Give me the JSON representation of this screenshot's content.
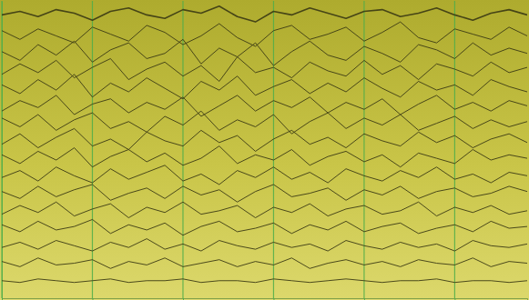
{
  "chart_data": {
    "type": "line",
    "color": "#3b3a14",
    "grid": true,
    "tick_labels": false,
    "x": [
      0,
      1,
      2,
      3,
      4,
      5,
      6,
      7,
      8,
      9,
      10,
      11,
      12,
      13,
      14,
      15,
      16,
      17,
      18,
      19,
      20,
      21,
      22,
      23,
      24,
      25,
      26,
      27,
      28,
      29
    ],
    "xlim": [
      0,
      29
    ],
    "xticks": [
      0,
      5,
      10,
      15,
      20,
      25
    ],
    "ylim": [
      0,
      17
    ],
    "series": [
      {
        "values": [
          16.2,
          16.4,
          16.1,
          16.5,
          16.3,
          15.9,
          16.4,
          16.6,
          16.2,
          16.0,
          16.5,
          16.3,
          16.7,
          16.1,
          15.8,
          16.4,
          16.2,
          16.6,
          16.3,
          16.0,
          16.4,
          16.5,
          16.1,
          16.3,
          16.6,
          16.2,
          15.9,
          16.3,
          16.5,
          16.2
        ]
      },
      {
        "values": [
          15.3,
          14.8,
          15.4,
          15.0,
          14.6,
          15.5,
          15.1,
          14.7,
          15.6,
          15.2,
          14.5,
          15.0,
          15.7,
          14.9,
          14.4,
          15.3,
          15.6,
          14.8,
          15.1,
          15.5,
          14.7,
          15.2,
          15.8,
          14.9,
          14.6,
          15.4,
          15.1,
          14.8,
          15.5,
          15.0
        ]
      },
      {
        "values": [
          14.1,
          13.6,
          14.5,
          13.9,
          14.7,
          13.5,
          14.2,
          14.6,
          13.7,
          14.0,
          14.8,
          13.4,
          14.3,
          13.8,
          14.6,
          13.3,
          14.1,
          14.7,
          13.9,
          13.6,
          14.4,
          14.0,
          13.5,
          14.5,
          14.2,
          13.7,
          14.6,
          13.9,
          14.3,
          14.0
        ]
      },
      {
        "values": [
          12.8,
          13.4,
          12.9,
          13.6,
          12.6,
          13.2,
          13.7,
          12.5,
          13.1,
          13.5,
          12.7,
          13.3,
          12.4,
          13.8,
          12.9,
          13.2,
          12.6,
          13.5,
          13.0,
          12.7,
          13.6,
          12.8,
          13.3,
          12.5,
          13.4,
          13.1,
          12.7,
          13.5,
          12.9,
          13.2
        ]
      },
      {
        "values": [
          12.2,
          11.7,
          12.5,
          11.9,
          12.8,
          11.5,
          12.3,
          11.8,
          12.6,
          12.0,
          11.4,
          12.4,
          11.9,
          12.7,
          11.6,
          12.1,
          12.5,
          11.7,
          12.3,
          11.8,
          12.6,
          12.0,
          11.5,
          12.4,
          11.9,
          12.2,
          11.6,
          12.5,
          12.1,
          11.8
        ]
      },
      {
        "values": [
          10.7,
          11.3,
          10.9,
          11.6,
          10.5,
          11.1,
          11.4,
          10.6,
          11.2,
          10.8,
          11.5,
          10.4,
          11.0,
          11.6,
          10.7,
          11.3,
          10.9,
          11.5,
          10.6,
          11.2,
          10.8,
          11.4,
          10.5,
          11.1,
          11.6,
          10.8,
          11.2,
          10.7,
          11.3,
          11.0
        ]
      },
      {
        "values": [
          10.3,
          9.8,
          10.5,
          9.6,
          10.2,
          10.6,
          9.7,
          10.1,
          9.5,
          10.4,
          9.9,
          10.7,
          9.6,
          10.2,
          9.8,
          10.5,
          9.4,
          10.1,
          10.6,
          9.7,
          10.3,
          9.9,
          10.5,
          9.6,
          10.0,
          10.4,
          9.7,
          10.2,
          9.8,
          10.1
        ]
      },
      {
        "values": [
          8.8,
          9.4,
          8.6,
          9.2,
          9.7,
          8.7,
          9.1,
          8.5,
          9.5,
          9.0,
          8.7,
          9.6,
          8.9,
          9.3,
          8.4,
          9.1,
          9.6,
          8.8,
          9.2,
          8.6,
          9.4,
          9.0,
          8.7,
          9.5,
          8.9,
          9.3,
          8.6,
          9.1,
          9.4,
          8.9
        ]
      },
      {
        "values": [
          8.2,
          7.7,
          8.4,
          7.9,
          8.6,
          7.5,
          8.1,
          8.5,
          7.8,
          8.3,
          7.6,
          8.0,
          8.7,
          7.7,
          8.2,
          7.9,
          8.5,
          7.6,
          8.1,
          8.4,
          7.8,
          8.2,
          7.5,
          8.3,
          8.0,
          7.7,
          8.5,
          7.9,
          8.2,
          8.0
        ]
      },
      {
        "values": [
          6.9,
          7.3,
          6.7,
          7.5,
          7.0,
          6.6,
          7.4,
          6.8,
          7.2,
          7.6,
          6.7,
          7.1,
          6.5,
          7.3,
          6.9,
          7.5,
          6.8,
          7.2,
          6.6,
          7.4,
          7.0,
          6.7,
          7.3,
          6.9,
          7.5,
          6.8,
          7.1,
          6.6,
          7.2,
          7.0
        ]
      },
      {
        "values": [
          6.1,
          5.7,
          6.4,
          5.8,
          6.2,
          6.5,
          5.6,
          6.0,
          6.3,
          5.7,
          6.4,
          5.9,
          6.2,
          5.5,
          6.1,
          6.5,
          5.8,
          6.0,
          6.3,
          5.6,
          6.2,
          5.9,
          6.4,
          5.7,
          6.1,
          6.3,
          5.8,
          6.0,
          6.4,
          6.1
        ]
      },
      {
        "values": [
          4.8,
          5.3,
          4.9,
          5.5,
          4.7,
          5.1,
          5.4,
          4.6,
          5.2,
          4.9,
          5.5,
          4.8,
          5.0,
          5.3,
          4.6,
          5.2,
          4.9,
          5.4,
          4.7,
          5.1,
          5.3,
          4.8,
          5.0,
          5.5,
          4.7,
          5.2,
          4.9,
          5.3,
          4.8,
          5.0
        ]
      },
      {
        "values": [
          4.2,
          3.8,
          4.4,
          3.9,
          4.1,
          4.5,
          3.7,
          4.2,
          3.9,
          4.3,
          3.6,
          4.1,
          4.4,
          3.8,
          4.0,
          4.3,
          3.7,
          4.2,
          3.9,
          4.4,
          3.8,
          4.1,
          4.3,
          3.7,
          4.0,
          4.2,
          3.8,
          4.4,
          4.0,
          4.1
        ]
      },
      {
        "values": [
          2.9,
          3.2,
          2.8,
          3.3,
          3.0,
          2.7,
          3.2,
          2.9,
          3.4,
          2.8,
          3.1,
          2.7,
          3.3,
          3.0,
          2.8,
          3.2,
          2.9,
          3.1,
          2.7,
          3.3,
          3.0,
          2.8,
          3.2,
          2.9,
          3.1,
          2.7,
          3.3,
          3.0,
          2.9,
          3.1
        ]
      },
      {
        "values": [
          2.1,
          1.8,
          2.3,
          1.9,
          2.0,
          2.2,
          1.7,
          2.1,
          1.9,
          2.3,
          1.8,
          2.0,
          2.2,
          1.8,
          2.1,
          1.9,
          2.3,
          1.7,
          2.0,
          2.2,
          1.9,
          2.1,
          1.8,
          2.2,
          2.0,
          1.9,
          2.3,
          1.8,
          2.1,
          2.0
        ]
      },
      {
        "values": [
          1.0,
          0.9,
          1.1,
          1.0,
          0.9,
          1.0,
          1.1,
          0.9,
          1.0,
          1.0,
          1.1,
          0.9,
          1.0,
          1.0,
          0.9,
          1.1,
          1.0,
          0.9,
          1.0,
          1.1,
          1.0,
          0.9,
          1.0,
          1.0,
          1.1,
          0.9,
          1.0,
          1.0,
          0.9,
          1.0
        ]
      }
    ]
  }
}
